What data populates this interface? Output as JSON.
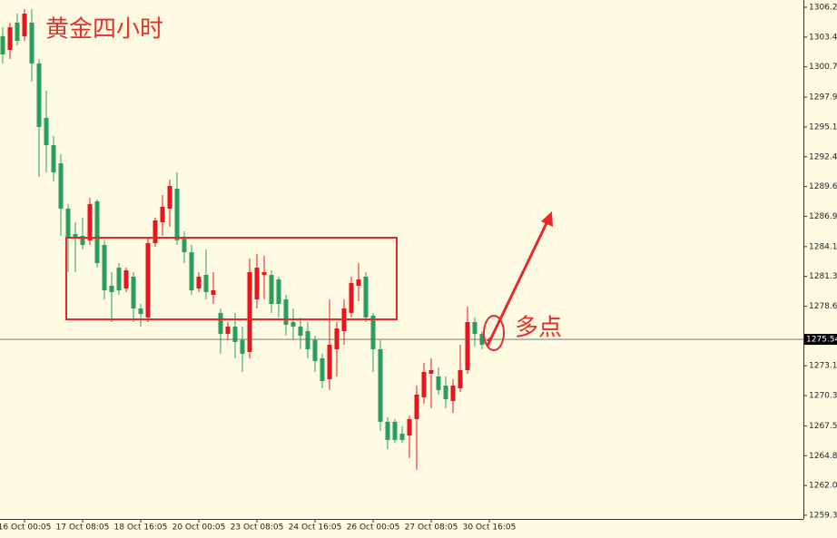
{
  "chart_data": {
    "type": "candlestick",
    "title": "黄金四小时",
    "annotations": [
      "多点"
    ],
    "categories": [
      null,
      null,
      null,
      "16 Oct 00:05",
      null,
      null,
      null,
      null,
      null,
      null,
      null,
      "17 Oct 08:05",
      null,
      null,
      null,
      null,
      null,
      null,
      null,
      "18 Oct 16:05",
      null,
      null,
      null,
      null,
      null,
      null,
      null,
      "20 Oct 00:05",
      null,
      null,
      null,
      null,
      null,
      null,
      null,
      "23 Oct 08:05",
      null,
      null,
      null,
      null,
      null,
      null,
      null,
      "24 Oct 16:05",
      null,
      null,
      null,
      null,
      null,
      null,
      null,
      "26 Oct 00:05",
      null,
      null,
      null,
      null,
      null,
      null,
      null,
      "27 Oct 08:05",
      null,
      null,
      null,
      null,
      null,
      null,
      null,
      "30 Oct 16:05"
    ],
    "open": [
      1303.52,
      1302.26,
      1304.78,
      1303.52,
      1304.78,
      1301.01,
      1295.98,
      1293.47,
      1291.8,
      1287.61,
      1285.26,
      1285.1,
      1284.68,
      1288.28,
      1284.26,
      1280.49,
      1282.16,
      1280.24,
      1281.33,
      1278.39,
      1277.56,
      1284.42,
      1286.35,
      1287.61,
      1289.45,
      1284.84,
      1283.59,
      1280.24,
      1281.49,
      1279.65,
      1277.98,
      1276.05,
      1276.72,
      1275.47,
      1274.38,
      1279.23,
      1281.49,
      1281.49,
      1281.07,
      1279.23,
      1277.14,
      1276.72,
      1276.3,
      1275.47,
      1273.79,
      1271.86,
      1274.63,
      1276.3,
      1277.98,
      1280.49,
      1281.33,
      1277.73,
      1274.63,
      1267.93,
      1267.93,
      1266.84,
      1266.67,
      1268.18,
      1270.19,
      1272.37,
      1272.11,
      1271.27,
      1269.85,
      1271.02,
      1272.7,
      1277.14,
      1276.05,
      1275.38
    ],
    "high": [
      1304.36,
      1304.78,
      1305.61,
      1306.03,
      1306.03,
      1301.43,
      1298.5,
      1294.31,
      1292.63,
      1288.03,
      1286.35,
      1286.77,
      1288.61,
      1288.44,
      1284.68,
      1281.75,
      1282.58,
      1282.16,
      1281.75,
      1278.81,
      1284.93,
      1286.77,
      1288.86,
      1290.29,
      1290.96,
      1285.51,
      1284.26,
      1281.75,
      1283.84,
      1281.75,
      1278.39,
      1277.14,
      1277.98,
      1276.72,
      1283.0,
      1283.42,
      1283.25,
      1281.91,
      1281.33,
      1279.65,
      1278.39,
      1277.56,
      1277.14,
      1275.88,
      1274.21,
      1279.23,
      1277.14,
      1279.23,
      1281.33,
      1282.58,
      1281.75,
      1277.98,
      1275.47,
      1268.35,
      1268.18,
      1267.51,
      1268.51,
      1271.27,
      1273.37,
      1273.79,
      1272.95,
      1272.11,
      1271.86,
      1275.05,
      1278.56,
      1277.56,
      1276.3,
      1275.72
    ],
    "low": [
      1301.01,
      1301.43,
      1302.68,
      1303.1,
      1299.33,
      1290.54,
      1290.96,
      1290.12,
      1285.1,
      1281.75,
      1281.75,
      1283.84,
      1284.26,
      1282.16,
      1279.23,
      1277.14,
      1279.65,
      1279.9,
      1277.14,
      1276.72,
      1277.14,
      1284.09,
      1285.1,
      1285.93,
      1284.26,
      1282.58,
      1279.65,
      1279.9,
      1279.23,
      1278.81,
      1274.21,
      1275.47,
      1273.79,
      1272.53,
      1273.79,
      1278.39,
      1279.23,
      1277.98,
      1277.56,
      1275.88,
      1275.47,
      1274.63,
      1273.79,
      1272.53,
      1271.02,
      1270.86,
      1272.11,
      1275.05,
      1277.56,
      1279.07,
      1277.14,
      1272.53,
      1267.09,
      1265.41,
      1266.0,
      1266.0,
      1264.58,
      1263.49,
      1269.6,
      1269.18,
      1270.44,
      1269.18,
      1268.76,
      1270.69,
      1272.37,
      1274.88,
      1274.63,
      1275.21
    ],
    "close": [
      1301.85,
      1304.36,
      1303.1,
      1305.61,
      1301.01,
      1295.15,
      1293.47,
      1290.96,
      1287.61,
      1284.93,
      1284.93,
      1284.26,
      1288.03,
      1282.58,
      1280.07,
      1279.9,
      1280.07,
      1281.91,
      1278.39,
      1277.89,
      1284.42,
      1286.52,
      1287.78,
      1289.7,
      1284.68,
      1283.59,
      1280.07,
      1281.33,
      1279.9,
      1280.07,
      1276.05,
      1276.72,
      1275.3,
      1274.21,
      1281.75,
      1282.16,
      1281.75,
      1278.81,
      1278.81,
      1276.89,
      1276.72,
      1275.88,
      1274.63,
      1273.54,
      1271.69,
      1275.05,
      1276.55,
      1278.39,
      1280.74,
      1281.07,
      1277.56,
      1274.63,
      1267.93,
      1266.25,
      1266.25,
      1266.25,
      1268.18,
      1270.44,
      1272.53,
      1272.7,
      1270.86,
      1270.02,
      1271.27,
      1272.7,
      1277.14,
      1276.05,
      1275.05,
      1275.54
    ],
    "up_color": "#e8141a",
    "down_color": "#26a05a",
    "last_price": 1275.54,
    "ylim": [
      1258.96,
      1306.87
    ],
    "yticks": [
      {
        "value": 1306.2,
        "label": "1306.20"
      },
      {
        "value": 1303.45,
        "label": "1303.45"
      },
      {
        "value": 1300.7,
        "label": "1300.70"
      },
      {
        "value": 1297.9,
        "label": "1297.90"
      },
      {
        "value": 1295.15,
        "label": "1295.15"
      },
      {
        "value": 1292.4,
        "label": "1292.40"
      },
      {
        "value": 1289.65,
        "label": "1289.65"
      },
      {
        "value": 1286.9,
        "label": "1286.90"
      },
      {
        "value": 1284.1,
        "label": "1284.10"
      },
      {
        "value": 1281.35,
        "label": "1281.35"
      },
      {
        "value": 1278.6,
        "label": "1278.60"
      },
      {
        "value": 1273.1,
        "label": "1273.10"
      },
      {
        "value": 1270.35,
        "label": "1270.35"
      },
      {
        "value": 1267.55,
        "label": "1267.55"
      },
      {
        "value": 1264.8,
        "label": "1264.80"
      },
      {
        "value": 1262.05,
        "label": "1262.05"
      },
      {
        "value": 1259.3,
        "label": "1259.30"
      }
    ]
  }
}
